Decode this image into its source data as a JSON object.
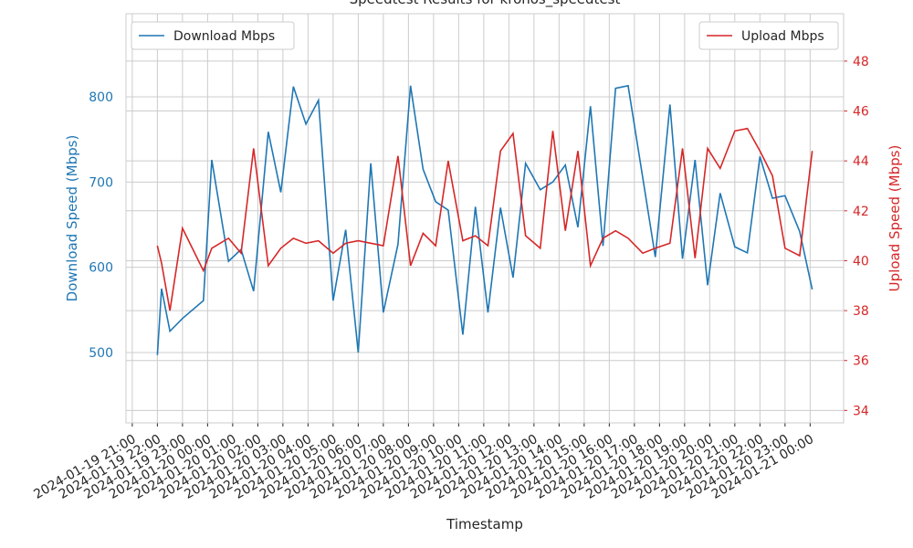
{
  "chart_data": {
    "type": "line",
    "title": "Speedtest Results for kronos_speedtest",
    "xlabel": "Timestamp",
    "ylabel": "Download Speed (Mbps)",
    "y2label": "Upload Speed (Mbps)",
    "x": [
      "2024-01-19 22:00",
      "2024-01-19 22:10",
      "2024-01-19 22:30",
      "2024-01-19 23:00",
      "2024-01-19 23:50",
      "2024-01-20 00:10",
      "2024-01-20 00:50",
      "2024-01-20 01:20",
      "2024-01-20 01:50",
      "2024-01-20 02:25",
      "2024-01-20 02:55",
      "2024-01-20 03:25",
      "2024-01-20 03:55",
      "2024-01-20 04:25",
      "2024-01-20 05:00",
      "2024-01-20 05:30",
      "2024-01-20 06:00",
      "2024-01-20 06:30",
      "2024-01-20 07:00",
      "2024-01-20 07:35",
      "2024-01-20 08:05",
      "2024-01-20 08:35",
      "2024-01-20 09:05",
      "2024-01-20 09:35",
      "2024-01-20 10:10",
      "2024-01-20 10:40",
      "2024-01-20 11:10",
      "2024-01-20 11:40",
      "2024-01-20 12:10",
      "2024-01-20 12:40",
      "2024-01-20 13:15",
      "2024-01-20 13:45",
      "2024-01-20 14:15",
      "2024-01-20 14:45",
      "2024-01-20 15:15",
      "2024-01-20 15:45",
      "2024-01-20 16:15",
      "2024-01-20 16:45",
      "2024-01-20 17:20",
      "2024-01-20 17:50",
      "2024-01-20 18:25",
      "2024-01-20 18:55",
      "2024-01-20 19:25",
      "2024-01-20 19:55",
      "2024-01-20 20:25",
      "2024-01-20 21:00",
      "2024-01-20 21:30",
      "2024-01-20 22:00",
      "2024-01-20 22:30",
      "2024-01-20 23:00",
      "2024-01-20 23:35",
      "2024-01-21 00:05"
    ],
    "series": [
      {
        "name": "Download Mbps",
        "color": "#1f77b4",
        "axis": "y",
        "values": [
          497,
          575,
          525,
          540,
          561,
          726,
          607,
          621,
          572,
          759,
          688,
          812,
          768,
          796,
          561,
          644,
          500,
          722,
          547,
          627,
          813,
          715,
          677,
          667,
          521,
          671,
          547,
          670,
          588,
          722,
          691,
          700,
          720,
          647,
          789,
          625,
          810,
          813,
          705,
          612,
          791,
          610,
          726,
          579,
          687,
          624,
          617,
          730,
          681,
          684,
          642,
          574
        ]
      },
      {
        "name": "Upload Mbps",
        "color": "#d62728",
        "axis": "y2",
        "values": [
          40.6,
          39.9,
          38.0,
          41.3,
          39.6,
          40.5,
          40.9,
          40.3,
          44.5,
          39.8,
          40.5,
          40.9,
          40.7,
          40.8,
          40.3,
          40.7,
          40.8,
          40.7,
          40.6,
          44.2,
          39.8,
          41.1,
          40.6,
          44.0,
          40.8,
          41.0,
          40.6,
          44.4,
          45.1,
          41.0,
          40.5,
          45.2,
          41.2,
          44.4,
          39.8,
          40.9,
          41.2,
          40.9,
          40.3,
          40.5,
          40.7,
          44.5,
          40.1,
          44.5,
          43.7,
          45.2,
          45.3,
          44.4,
          43.4,
          40.5,
          40.2,
          44.4
        ]
      }
    ],
    "xlim": [
      "2024-01-19 20:45",
      "2024-01-21 01:20"
    ],
    "xticks": [
      "2024-01-19 21:00",
      "2024-01-19 22:00",
      "2024-01-19 23:00",
      "2024-01-20 00:00",
      "2024-01-20 01:00",
      "2024-01-20 02:00",
      "2024-01-20 03:00",
      "2024-01-20 04:00",
      "2024-01-20 05:00",
      "2024-01-20 06:00",
      "2024-01-20 07:00",
      "2024-01-20 08:00",
      "2024-01-20 09:00",
      "2024-01-20 10:00",
      "2024-01-20 11:00",
      "2024-01-20 12:00",
      "2024-01-20 13:00",
      "2024-01-20 14:00",
      "2024-01-20 15:00",
      "2024-01-20 16:00",
      "2024-01-20 17:00",
      "2024-01-20 18:00",
      "2024-01-20 19:00",
      "2024-01-20 20:00",
      "2024-01-20 21:00",
      "2024-01-20 22:00",
      "2024-01-20 23:00",
      "2024-01-21 00:00"
    ],
    "ylim": [
      417.5,
      897.5
    ],
    "yticks": [
      500,
      600,
      700,
      800
    ],
    "y2lim": [
      33.5,
      49.9
    ],
    "y2ticks": [
      34,
      36,
      38,
      40,
      42,
      44,
      46,
      48
    ],
    "grid": true
  }
}
